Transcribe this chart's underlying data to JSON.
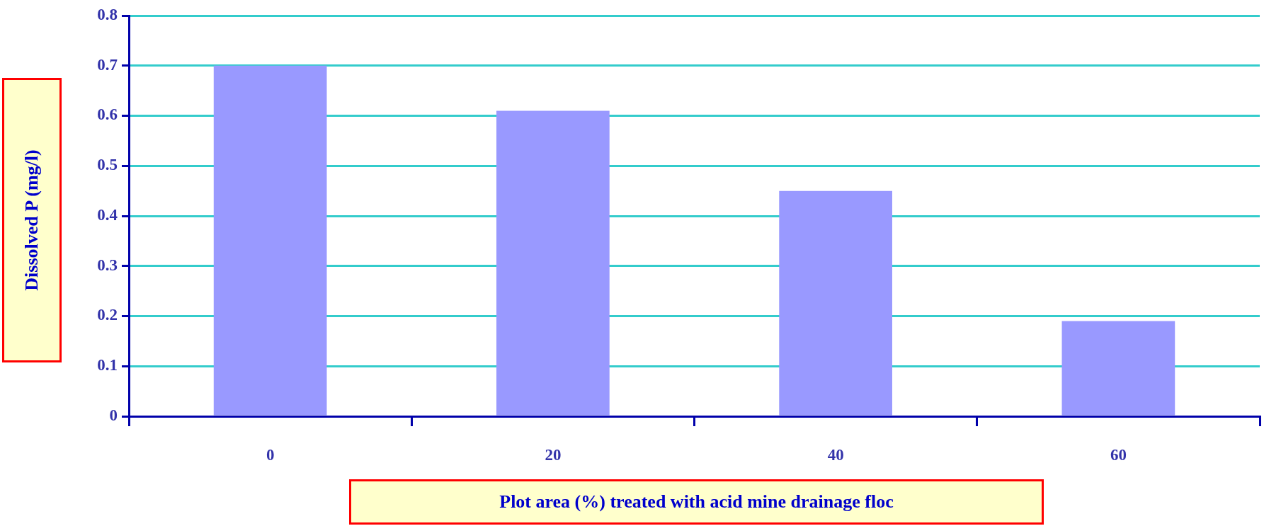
{
  "chart_data": {
    "type": "bar",
    "xlabel": "Plot area (%) treated with acid mine drainage floc",
    "ylabel": "Dissolved P (mg/l)",
    "categories": [
      "0",
      "20",
      "40",
      "60"
    ],
    "series": [
      {
        "color": "#9999ff",
        "values": [
          0.7,
          0.61,
          0.45,
          0.19
        ]
      }
    ],
    "ylim": [
      0,
      0.8
    ],
    "yticks": [
      0,
      0.1,
      0.2,
      0.3,
      0.4,
      0.5,
      0.6,
      0.7,
      0.8
    ],
    "grid": "y",
    "legend": false
  }
}
